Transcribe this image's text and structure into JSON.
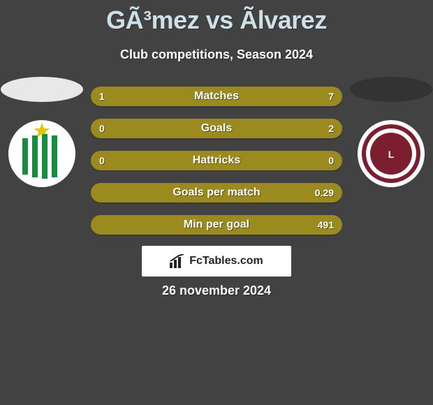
{
  "title": "GÃ³mez vs Ãlvarez",
  "subtitle": "Club competitions, Season 2024",
  "date": "26 november 2024",
  "brand": "FcTables.com",
  "colors": {
    "bar": "#9b8a1d",
    "bg": "#424242",
    "title": "#cde0e8",
    "text": "#ffffff",
    "left_ellipse": "#e8e8e8",
    "right_ellipse": "#333333"
  },
  "left_club": {
    "name": "CAB",
    "bg": "#ffffff",
    "stripe": "#1a8a3f",
    "star": "#e3c500"
  },
  "right_club": {
    "name": "Lanus",
    "outer": "#ffffff",
    "ring": "#7a1e30",
    "inner": "#7a1e30"
  },
  "stats": [
    {
      "label": "Matches",
      "left_val": "1",
      "right_val": "7",
      "left_pct": 12.5,
      "right_pct": 87.5
    },
    {
      "label": "Goals",
      "left_val": "0",
      "right_val": "2",
      "left_pct": 0,
      "right_pct": 100
    },
    {
      "label": "Hattricks",
      "left_val": "0",
      "right_val": "0",
      "left_pct": 50,
      "right_pct": 50
    },
    {
      "label": "Goals per match",
      "left_val": "",
      "right_val": "0.29",
      "left_pct": 0,
      "right_pct": 100
    },
    {
      "label": "Min per goal",
      "left_val": "",
      "right_val": "491",
      "left_pct": 0,
      "right_pct": 100
    }
  ]
}
